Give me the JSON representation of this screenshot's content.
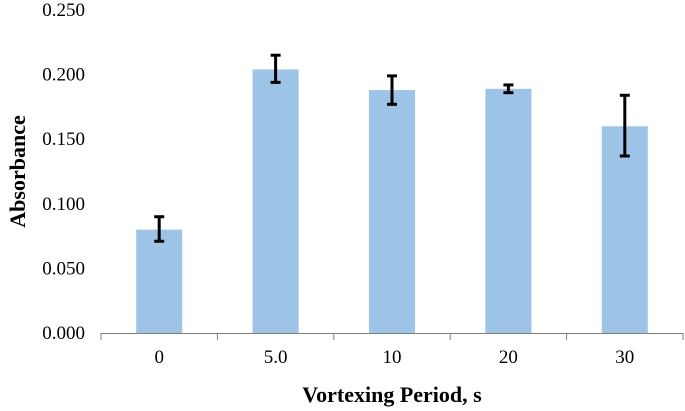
{
  "chart_data": {
    "type": "bar",
    "categories": [
      "0",
      "5.0",
      "10",
      "20",
      "30"
    ],
    "values": [
      0.08,
      0.204,
      0.188,
      0.189,
      0.16
    ],
    "error_low": [
      0.071,
      0.194,
      0.177,
      0.186,
      0.137
    ],
    "error_high": [
      0.09,
      0.215,
      0.199,
      0.192,
      0.184
    ],
    "title": "",
    "xlabel": "Vortexing Period, s",
    "ylabel": "Absorbance",
    "ylim": [
      0,
      0.25
    ],
    "yticks": [
      "0.000",
      "0.050",
      "0.100",
      "0.150",
      "0.200",
      "0.250"
    ],
    "grid": false,
    "legend": "none",
    "colors": {
      "bar": "#9dc3e6",
      "error_bar": "#000000",
      "axis": "#7f7f7f"
    }
  }
}
